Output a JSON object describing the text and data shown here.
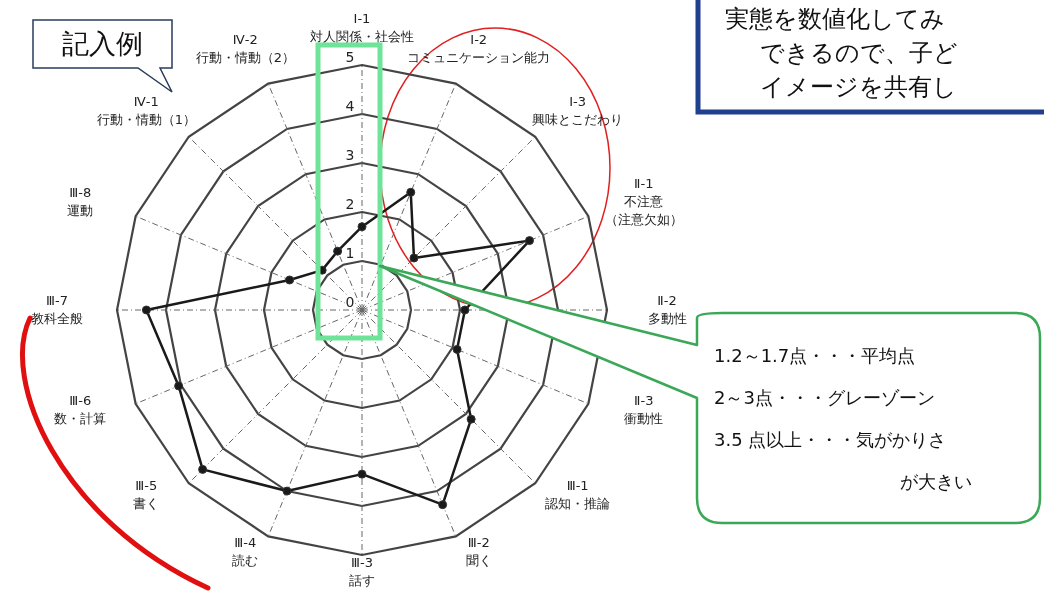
{
  "chart_data": {
    "type": "radar",
    "categories": [
      "Ⅰ-1 対人関係・社会性",
      "Ⅰ-2 コミュニケーション能力",
      "Ⅰ-3 興味とこだわり",
      "Ⅱ-1 不注意（注意欠如）",
      "Ⅱ-2 多動性",
      "Ⅱ-3 衝動性",
      "Ⅲ-1 認知・推論",
      "Ⅲ-2 聞く",
      "Ⅲ-3 話す",
      "Ⅲ-4 読む",
      "Ⅲ-5 書く",
      "Ⅲ-6 数・計算",
      "Ⅲ-7 教科全般",
      "Ⅲ-8 運動",
      "Ⅳ-1 行動・情動（1）",
      "Ⅳ-2 行動・情動（2）"
    ],
    "series": [
      {
        "color": "#1a1a1a",
        "values": [
          1.7,
          2.6,
          1.5,
          3.7,
          2.1,
          2.1,
          3.15,
          4.3,
          3.35,
          4.0,
          4.6,
          4.05,
          4.4,
          1.6,
          1.15,
          1.3
        ]
      }
    ],
    "ylim": [
      0,
      5
    ],
    "yticks": [
      0,
      1,
      2,
      3,
      4,
      5
    ],
    "grid": true,
    "marker": "circle",
    "annotations": [
      "記入例",
      "実態を数値化してみ",
      "できるので、子ど",
      "イメージを共有し",
      "1.2～1.7点・・・平均点",
      "2～3点・・・グレーゾーン",
      "3.5 点以上・・・気がかりさ",
      "が大きい"
    ]
  }
}
